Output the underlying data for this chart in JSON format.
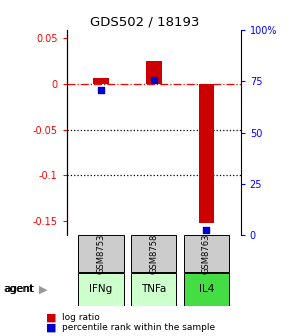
{
  "title": "GDS502 / 18193",
  "samples": [
    "GSM8753",
    "GSM8758",
    "GSM8763"
  ],
  "agents": [
    "IFNg",
    "TNFa",
    "IL4"
  ],
  "log_ratios": [
    0.006,
    0.025,
    -0.152
  ],
  "percentile_ranks": [
    0.71,
    0.755,
    0.025
  ],
  "ylim_left": [
    -0.165,
    0.058
  ],
  "ylim_right": [
    0.0,
    1.0
  ],
  "yticks_left": [
    0.05,
    0.0,
    -0.05,
    -0.1,
    -0.15
  ],
  "ytick_labels_left": [
    "0.05",
    "0",
    "-0.05",
    "-0.1",
    "-0.15"
  ],
  "yticks_right": [
    1.0,
    0.75,
    0.5,
    0.25,
    0.0
  ],
  "ytick_labels_right": [
    "100%",
    "75",
    "50",
    "25",
    "0"
  ],
  "bar_color": "#cc0000",
  "dot_color": "#0000cc",
  "agent_color_IFNg": "#ccffcc",
  "agent_color_TNFa": "#ccffcc",
  "agent_color_IL4": "#44dd44",
  "sample_bg": "#cccccc",
  "legend_log_ratio": "log ratio",
  "legend_percentile": "percentile rank within the sample"
}
